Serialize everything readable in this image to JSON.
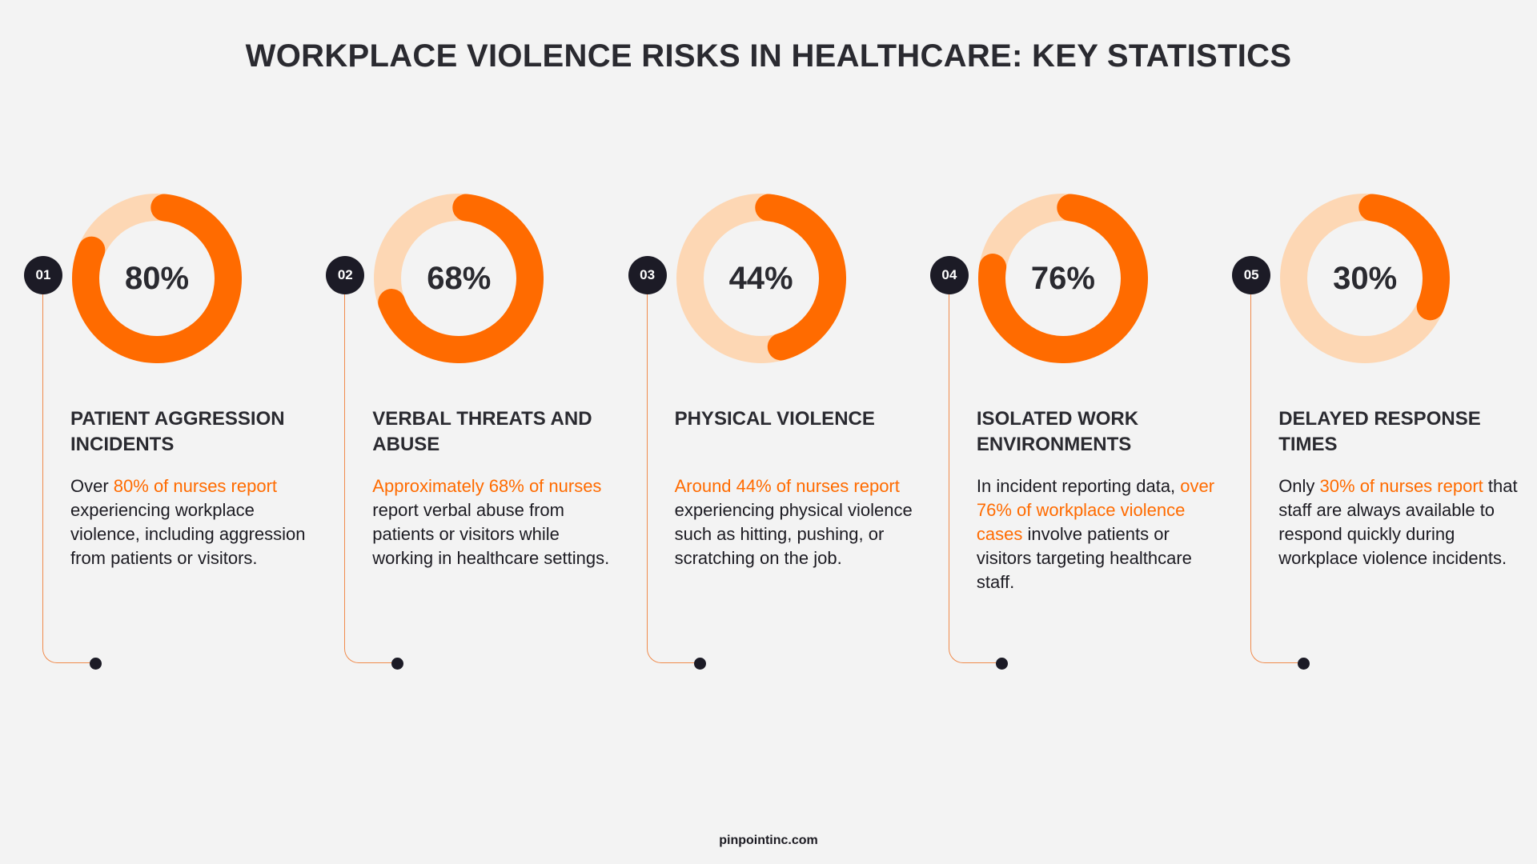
{
  "title": "WORKPLACE VIOLENCE RISKS IN HEALTHCARE: KEY STATISTICS",
  "colors": {
    "accent": "#ff6b00",
    "track": "#fdd7b4",
    "dark": "#1c1b26"
  },
  "items": [
    {
      "number": "01",
      "percent_label": "80%",
      "value": 80,
      "heading": "PATIENT AGGRESSION INCIDENTS",
      "before": "Over ",
      "highlight": "80% of nurses report",
      "after": " experiencing workplace violence, including aggression from patients or visitors."
    },
    {
      "number": "02",
      "percent_label": "68%",
      "value": 68,
      "heading": "VERBAL THREATS AND ABUSE",
      "before": "",
      "highlight": "Approximately 68% of nurses",
      "after": " report verbal abuse from patients or visitors while working in healthcare settings."
    },
    {
      "number": "03",
      "percent_label": "44%",
      "value": 44,
      "heading": "PHYSICAL VIOLENCE",
      "before": "",
      "highlight": "Around 44% of nurses report",
      "after": " experiencing physical violence such as hitting, pushing, or scratching on the job."
    },
    {
      "number": "04",
      "percent_label": "76%",
      "value": 76,
      "heading": "ISOLATED WORK ENVIRONMENTS",
      "before": "In incident reporting data, ",
      "highlight": "over 76% of workplace violence cases",
      "after": " involve patients or visitors targeting healthcare staff."
    },
    {
      "number": "05",
      "percent_label": "30%",
      "value": 30,
      "heading": "DELAYED RESPONSE TIMES",
      "before": "Only ",
      "highlight": "30% of nurses report",
      "after": " that staff are always available to respond quickly during workplace violence incidents."
    }
  ],
  "footer": "pinpointinc.com"
}
